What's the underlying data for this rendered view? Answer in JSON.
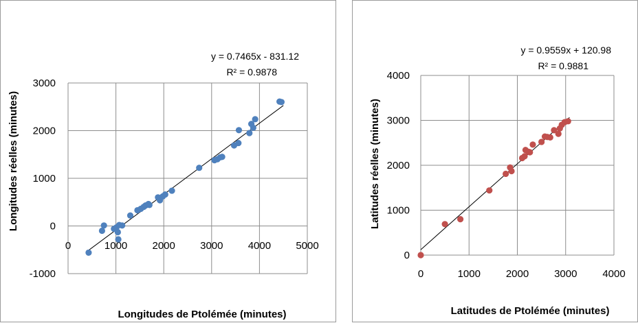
{
  "chart_data": [
    {
      "type": "scatter",
      "title": "",
      "xlabel": "Longitudes de Ptolémée (minutes)",
      "ylabel": "Longitudes réelles (minutes)",
      "xlim": [
        0,
        5000
      ],
      "ylim": [
        -1000,
        3000
      ],
      "xticks": [
        "0",
        "1000",
        "2000",
        "3000",
        "4000",
        "5000"
      ],
      "yticks": [
        "-1000",
        "0",
        "1000",
        "2000",
        "3000"
      ],
      "grid": true,
      "legend": "none",
      "marker_color": "#4F81BD",
      "trendline": {
        "slope": 0.7465,
        "intercept": -831.12,
        "equation": "y = 0.7465x - 831.12",
        "r2": "R² = 0.9878"
      },
      "points": [
        [
          430,
          -560
        ],
        [
          710,
          -100
        ],
        [
          750,
          10
        ],
        [
          960,
          -60
        ],
        [
          1010,
          -30
        ],
        [
          1040,
          -130
        ],
        [
          1050,
          -280
        ],
        [
          1070,
          20
        ],
        [
          1130,
          10
        ],
        [
          1300,
          220
        ],
        [
          1450,
          330
        ],
        [
          1520,
          360
        ],
        [
          1580,
          400
        ],
        [
          1620,
          430
        ],
        [
          1680,
          460
        ],
        [
          1700,
          440
        ],
        [
          1880,
          600
        ],
        [
          1920,
          540
        ],
        [
          1980,
          620
        ],
        [
          2030,
          660
        ],
        [
          2170,
          740
        ],
        [
          2740,
          1220
        ],
        [
          3060,
          1380
        ],
        [
          3120,
          1400
        ],
        [
          3180,
          1440
        ],
        [
          3220,
          1450
        ],
        [
          3470,
          1690
        ],
        [
          3560,
          1740
        ],
        [
          3570,
          2010
        ],
        [
          3790,
          1950
        ],
        [
          3830,
          2140
        ],
        [
          3870,
          2060
        ],
        [
          3910,
          2240
        ],
        [
          4420,
          2610
        ],
        [
          4460,
          2600
        ]
      ]
    },
    {
      "type": "scatter",
      "title": "",
      "xlabel": "Latitudes de Ptolémée (minutes)",
      "ylabel": "Latitudes réelles (minutes)",
      "xlim": [
        0,
        4000
      ],
      "ylim": [
        0,
        4000
      ],
      "xticks": [
        "0",
        "1000",
        "2000",
        "3000",
        "4000"
      ],
      "yticks": [
        "0",
        "1000",
        "2000",
        "3000",
        "4000"
      ],
      "grid": true,
      "legend": "none",
      "marker_color": "#C0504D",
      "trendline": {
        "slope": 0.9559,
        "intercept": 120.98,
        "equation": "y = 0.9559x + 120.98",
        "r2": "R² = 0.9881"
      },
      "points": [
        [
          0,
          0
        ],
        [
          500,
          690
        ],
        [
          820,
          800
        ],
        [
          1420,
          1440
        ],
        [
          1760,
          1810
        ],
        [
          1850,
          1950
        ],
        [
          1880,
          1870
        ],
        [
          2100,
          2160
        ],
        [
          2150,
          2200
        ],
        [
          2170,
          2340
        ],
        [
          2230,
          2300
        ],
        [
          2260,
          2290
        ],
        [
          2320,
          2460
        ],
        [
          2500,
          2520
        ],
        [
          2570,
          2640
        ],
        [
          2620,
          2630
        ],
        [
          2680,
          2620
        ],
        [
          2760,
          2780
        ],
        [
          2850,
          2700
        ],
        [
          2880,
          2820
        ],
        [
          2920,
          2900
        ],
        [
          2980,
          2960
        ],
        [
          3050,
          2980
        ]
      ]
    }
  ]
}
